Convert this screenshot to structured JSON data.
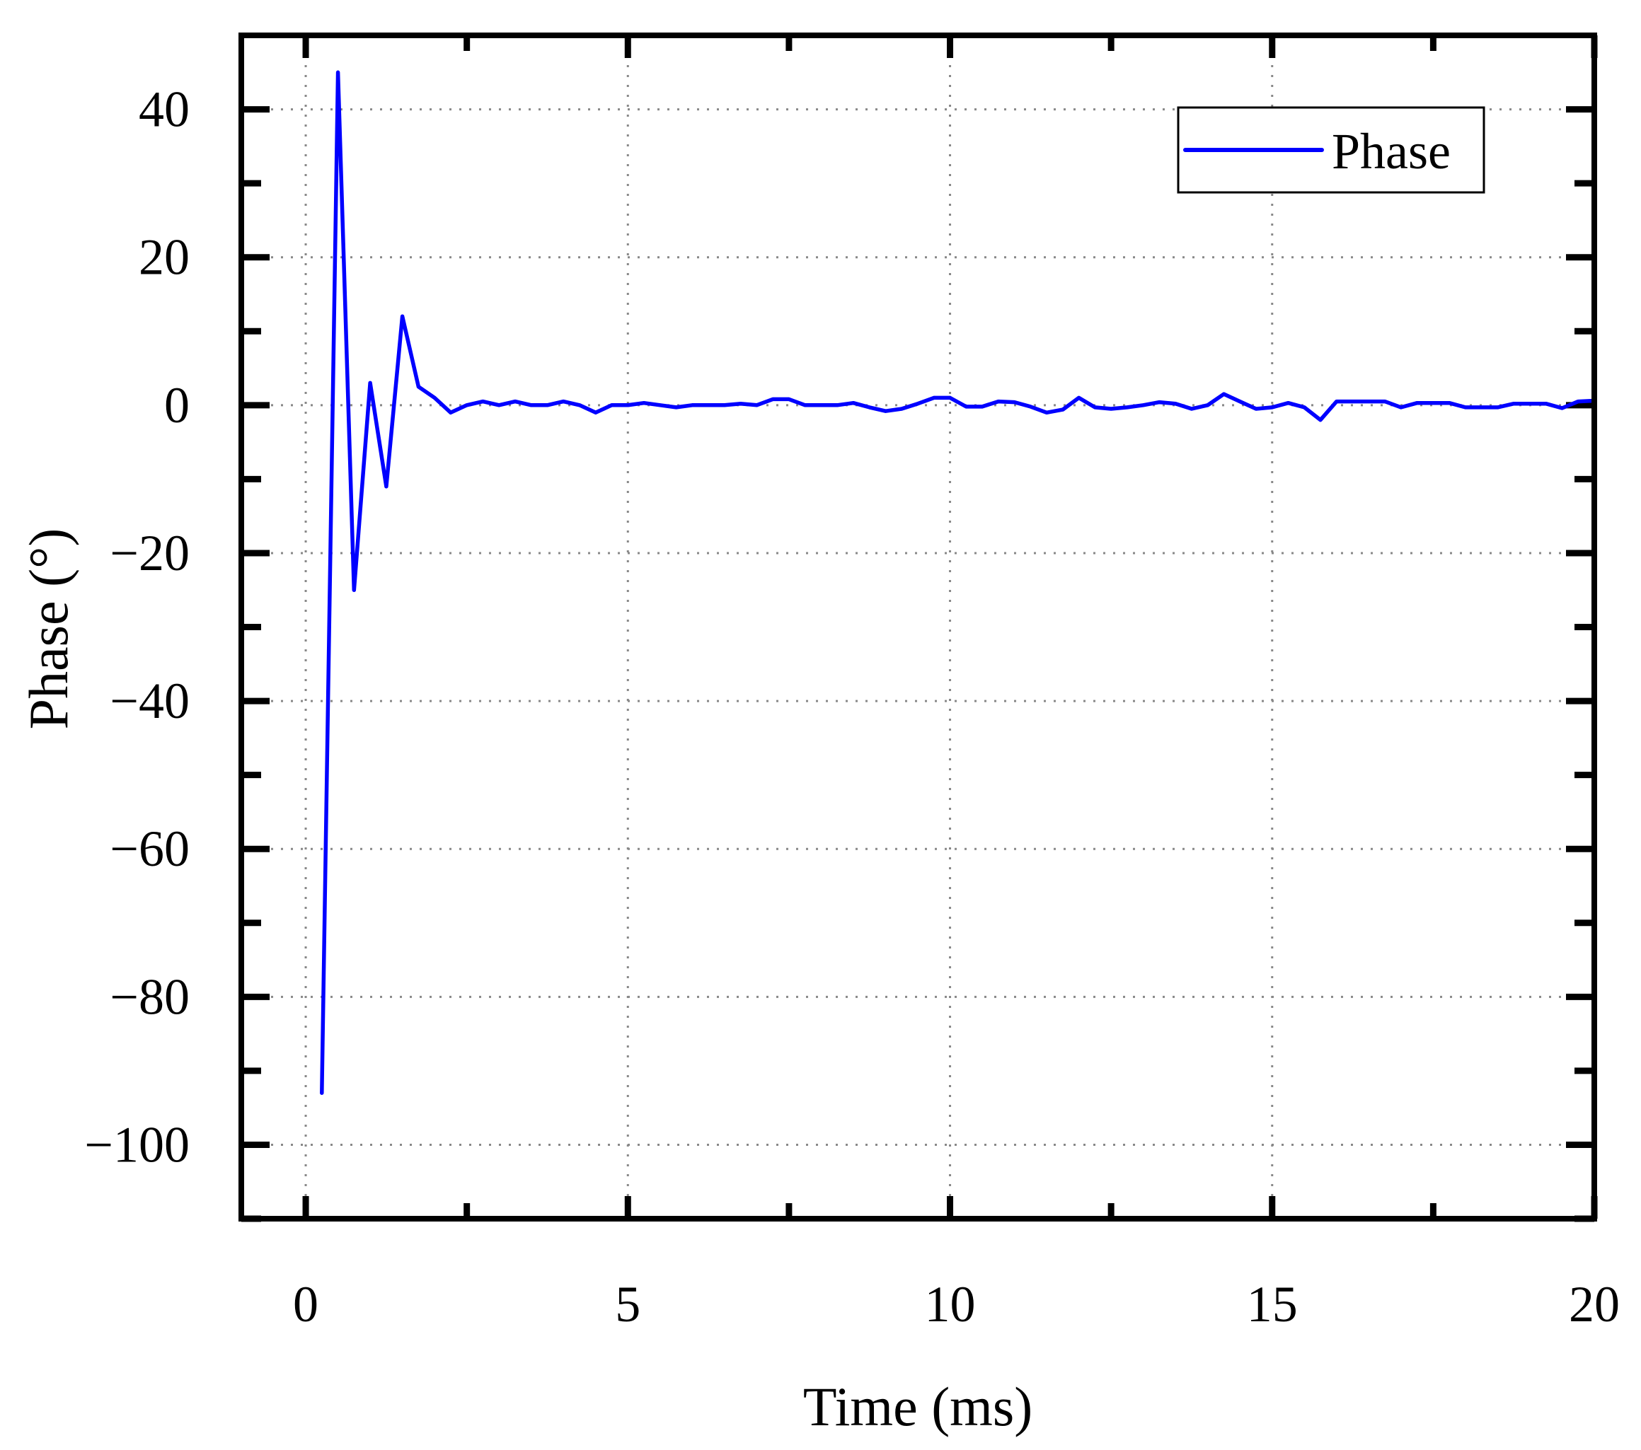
{
  "chart_data": {
    "type": "line",
    "title": "",
    "xlabel": "Time (ms)",
    "ylabel": "Phase (°)",
    "xlim": [
      -1,
      20
    ],
    "ylim": [
      -110,
      50
    ],
    "xticks": [
      0,
      5,
      10,
      15,
      20
    ],
    "yticks": [
      40,
      20,
      0,
      -20,
      -40,
      -60,
      -80,
      -100
    ],
    "xtick_labels": [
      "0",
      "5",
      "10",
      "15",
      "20"
    ],
    "ytick_labels": [
      "40",
      "20",
      "0",
      "−20",
      "−40",
      "−60",
      "−80",
      "−100"
    ],
    "grid": true,
    "legend_position": "top-right",
    "series": [
      {
        "name": "Phase",
        "color": "#0000ff",
        "x": [
          0.25,
          0.5,
          0.75,
          1.0,
          1.25,
          1.5,
          1.75,
          2.0,
          2.25,
          2.5,
          2.75,
          3.0,
          3.25,
          3.5,
          3.75,
          4.0,
          4.25,
          4.5,
          4.75,
          5.0,
          5.25,
          5.5,
          5.75,
          6.0,
          6.25,
          6.5,
          6.75,
          7.0,
          7.25,
          7.5,
          7.75,
          8.0,
          8.25,
          8.5,
          8.75,
          9.0,
          9.25,
          9.5,
          9.75,
          10.0,
          10.25,
          10.5,
          10.75,
          11.0,
          11.25,
          11.5,
          11.75,
          12.0,
          12.25,
          12.5,
          12.75,
          13.0,
          13.25,
          13.5,
          13.75,
          14.0,
          14.25,
          14.5,
          14.75,
          15.0,
          15.25,
          15.5,
          15.75,
          16.0,
          16.25,
          16.5,
          16.75,
          17.0,
          17.25,
          17.5,
          17.75,
          18.0,
          18.25,
          18.5,
          18.75,
          19.0,
          19.25,
          19.5,
          19.75,
          20.0
        ],
        "values": [
          -93,
          45,
          -25,
          3,
          -11,
          12,
          2.5,
          1,
          -1,
          0,
          0.5,
          0,
          0.5,
          0,
          0,
          0.5,
          0,
          -1,
          0,
          0,
          0.3,
          0,
          -0.3,
          0,
          0,
          0,
          0.2,
          0,
          0.8,
          0.8,
          0,
          0,
          0,
          0.3,
          -0.3,
          -0.8,
          -0.5,
          0.2,
          1,
          1,
          -0.2,
          -0.2,
          0.5,
          0.4,
          -0.2,
          -1,
          -0.6,
          1,
          -0.3,
          -0.5,
          -0.3,
          0,
          0.4,
          0.2,
          -0.5,
          0,
          1.5,
          0.5,
          -0.5,
          -0.3,
          0.3,
          -0.3,
          -2,
          0.5,
          0.5,
          0.5,
          0.5,
          -0.3,
          0.3,
          0.3,
          0.3,
          -0.3,
          -0.3,
          -0.3,
          0.2,
          0.2,
          0.2,
          -0.4,
          0.5,
          0.6
        ]
      }
    ]
  }
}
